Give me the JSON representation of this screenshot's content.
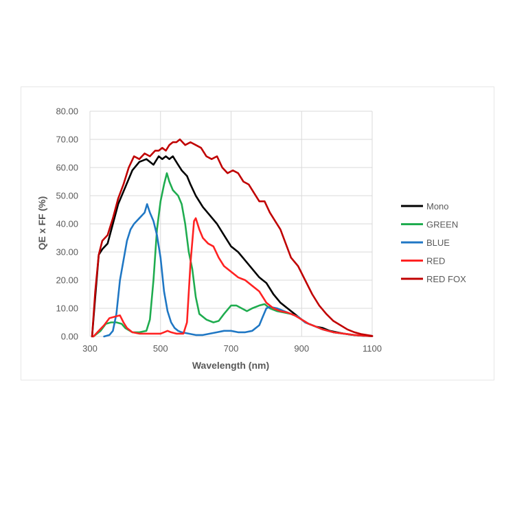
{
  "chart_data": {
    "type": "line",
    "xlabel": "Wavelength (nm)",
    "ylabel": "QE x FF (%)",
    "xlim": [
      300,
      1100
    ],
    "ylim": [
      0,
      80
    ],
    "x_ticks": [
      "300",
      "500",
      "700",
      "900",
      "1100"
    ],
    "y_ticks": [
      "0.00",
      "10.00",
      "20.00",
      "30.00",
      "40.00",
      "50.00",
      "60.00",
      "70.00",
      "80.00"
    ],
    "grid": true,
    "legend_position": "right",
    "series": [
      {
        "name": "Mono",
        "color": "#000000",
        "points": [
          [
            306,
            0
          ],
          [
            315,
            14
          ],
          [
            325,
            29
          ],
          [
            335,
            31
          ],
          [
            350,
            33
          ],
          [
            365,
            40
          ],
          [
            380,
            47
          ],
          [
            400,
            53
          ],
          [
            420,
            59
          ],
          [
            440,
            62
          ],
          [
            460,
            63
          ],
          [
            480,
            61
          ],
          [
            495,
            64
          ],
          [
            505,
            63
          ],
          [
            515,
            64
          ],
          [
            525,
            63
          ],
          [
            535,
            64
          ],
          [
            550,
            61
          ],
          [
            560,
            59
          ],
          [
            575,
            57
          ],
          [
            585,
            54
          ],
          [
            600,
            50
          ],
          [
            620,
            46
          ],
          [
            640,
            43
          ],
          [
            660,
            40
          ],
          [
            680,
            36
          ],
          [
            700,
            32
          ],
          [
            720,
            30
          ],
          [
            740,
            27
          ],
          [
            760,
            24
          ],
          [
            780,
            21
          ],
          [
            800,
            19
          ],
          [
            820,
            15
          ],
          [
            840,
            12
          ],
          [
            860,
            10
          ],
          [
            880,
            8
          ],
          [
            900,
            6
          ],
          [
            920,
            4.5
          ],
          [
            940,
            3.5
          ],
          [
            960,
            3
          ],
          [
            980,
            2
          ],
          [
            1000,
            1.5
          ],
          [
            1020,
            1
          ],
          [
            1040,
            0.6
          ],
          [
            1060,
            0.4
          ],
          [
            1080,
            0.2
          ],
          [
            1100,
            0.1
          ]
        ]
      },
      {
        "name": "GREEN",
        "color": "#1fac4f",
        "points": [
          [
            310,
            0
          ],
          [
            330,
            2
          ],
          [
            345,
            4.5
          ],
          [
            360,
            5
          ],
          [
            375,
            5
          ],
          [
            390,
            4.5
          ],
          [
            400,
            3
          ],
          [
            420,
            1.5
          ],
          [
            440,
            1.5
          ],
          [
            460,
            2
          ],
          [
            470,
            6
          ],
          [
            480,
            20
          ],
          [
            490,
            38
          ],
          [
            500,
            48
          ],
          [
            510,
            54
          ],
          [
            518,
            58
          ],
          [
            525,
            55
          ],
          [
            535,
            52
          ],
          [
            550,
            50
          ],
          [
            560,
            47
          ],
          [
            570,
            40
          ],
          [
            580,
            30
          ],
          [
            590,
            24
          ],
          [
            600,
            14
          ],
          [
            610,
            8
          ],
          [
            630,
            6
          ],
          [
            650,
            5
          ],
          [
            665,
            5.5
          ],
          [
            680,
            8
          ],
          [
            700,
            11
          ],
          [
            715,
            11
          ],
          [
            730,
            10
          ],
          [
            745,
            9
          ],
          [
            760,
            10
          ],
          [
            780,
            11
          ],
          [
            795,
            11.5
          ],
          [
            810,
            10
          ],
          [
            830,
            9
          ],
          [
            850,
            8.5
          ],
          [
            870,
            8
          ],
          [
            890,
            7
          ],
          [
            910,
            5
          ],
          [
            930,
            4
          ],
          [
            960,
            2.5
          ],
          [
            990,
            1.5
          ],
          [
            1020,
            1
          ],
          [
            1050,
            0.5
          ],
          [
            1100,
            0.1
          ]
        ]
      },
      {
        "name": "BLUE",
        "color": "#1f77c4",
        "points": [
          [
            340,
            0
          ],
          [
            355,
            0.5
          ],
          [
            365,
            2
          ],
          [
            375,
            8
          ],
          [
            385,
            20
          ],
          [
            395,
            27
          ],
          [
            405,
            34
          ],
          [
            415,
            38
          ],
          [
            425,
            40
          ],
          [
            440,
            42
          ],
          [
            455,
            44
          ],
          [
            462,
            47
          ],
          [
            470,
            44
          ],
          [
            480,
            41
          ],
          [
            490,
            36
          ],
          [
            500,
            28
          ],
          [
            510,
            16
          ],
          [
            520,
            9
          ],
          [
            530,
            5
          ],
          [
            540,
            3
          ],
          [
            550,
            2
          ],
          [
            560,
            1.5
          ],
          [
            580,
            1
          ],
          [
            600,
            0.5
          ],
          [
            620,
            0.5
          ],
          [
            640,
            1
          ],
          [
            660,
            1.5
          ],
          [
            680,
            2
          ],
          [
            700,
            2
          ],
          [
            720,
            1.5
          ],
          [
            740,
            1.5
          ],
          [
            760,
            2
          ],
          [
            780,
            4
          ],
          [
            790,
            7
          ],
          [
            800,
            10
          ],
          [
            810,
            10.5
          ],
          [
            830,
            10
          ],
          [
            850,
            9
          ],
          [
            870,
            8
          ],
          [
            890,
            7
          ],
          [
            910,
            5
          ],
          [
            930,
            4
          ],
          [
            960,
            2.5
          ],
          [
            990,
            1.5
          ],
          [
            1020,
            1
          ],
          [
            1050,
            0.5
          ],
          [
            1100,
            0.1
          ]
        ]
      },
      {
        "name": "RED",
        "color": "#ff2222",
        "points": [
          [
            310,
            0
          ],
          [
            325,
            2
          ],
          [
            340,
            4
          ],
          [
            355,
            6.5
          ],
          [
            370,
            7
          ],
          [
            385,
            7.5
          ],
          [
            395,
            5
          ],
          [
            405,
            3
          ],
          [
            420,
            1.5
          ],
          [
            440,
            1
          ],
          [
            460,
            1
          ],
          [
            480,
            1
          ],
          [
            500,
            1
          ],
          [
            510,
            1.5
          ],
          [
            520,
            2
          ],
          [
            530,
            1.5
          ],
          [
            545,
            1
          ],
          [
            555,
            1
          ],
          [
            565,
            1
          ],
          [
            575,
            5
          ],
          [
            585,
            26
          ],
          [
            595,
            41
          ],
          [
            600,
            42
          ],
          [
            610,
            38
          ],
          [
            620,
            35
          ],
          [
            635,
            33
          ],
          [
            650,
            32
          ],
          [
            665,
            28
          ],
          [
            680,
            25
          ],
          [
            700,
            23
          ],
          [
            720,
            21
          ],
          [
            740,
            20
          ],
          [
            760,
            18
          ],
          [
            780,
            16
          ],
          [
            800,
            12
          ],
          [
            820,
            10
          ],
          [
            840,
            9
          ],
          [
            860,
            8.5
          ],
          [
            880,
            7.5
          ],
          [
            900,
            6
          ],
          [
            920,
            4.5
          ],
          [
            940,
            3.5
          ],
          [
            960,
            2.5
          ],
          [
            990,
            1.5
          ],
          [
            1020,
            1
          ],
          [
            1050,
            0.5
          ],
          [
            1100,
            0.1
          ]
        ]
      },
      {
        "name": "RED FOX",
        "color": "#c00000",
        "points": [
          [
            306,
            0
          ],
          [
            315,
            16
          ],
          [
            325,
            29
          ],
          [
            335,
            34
          ],
          [
            350,
            36
          ],
          [
            365,
            42
          ],
          [
            380,
            49
          ],
          [
            395,
            54
          ],
          [
            410,
            60
          ],
          [
            425,
            64
          ],
          [
            440,
            63
          ],
          [
            455,
            65
          ],
          [
            470,
            64
          ],
          [
            485,
            66
          ],
          [
            495,
            66
          ],
          [
            505,
            67
          ],
          [
            515,
            66
          ],
          [
            525,
            68
          ],
          [
            535,
            69
          ],
          [
            545,
            69
          ],
          [
            555,
            70
          ],
          [
            570,
            68
          ],
          [
            585,
            69
          ],
          [
            600,
            68
          ],
          [
            615,
            67
          ],
          [
            630,
            64
          ],
          [
            645,
            63
          ],
          [
            660,
            64
          ],
          [
            675,
            60
          ],
          [
            690,
            58
          ],
          [
            705,
            59
          ],
          [
            720,
            58
          ],
          [
            735,
            55
          ],
          [
            750,
            54
          ],
          [
            765,
            51
          ],
          [
            780,
            48
          ],
          [
            795,
            48
          ],
          [
            810,
            44
          ],
          [
            825,
            41
          ],
          [
            840,
            38
          ],
          [
            855,
            33
          ],
          [
            870,
            28
          ],
          [
            890,
            25
          ],
          [
            910,
            20
          ],
          [
            930,
            15
          ],
          [
            950,
            11
          ],
          [
            970,
            8
          ],
          [
            990,
            5.5
          ],
          [
            1010,
            4
          ],
          [
            1030,
            2.5
          ],
          [
            1050,
            1.5
          ],
          [
            1070,
            0.8
          ],
          [
            1100,
            0.2
          ]
        ]
      }
    ]
  }
}
